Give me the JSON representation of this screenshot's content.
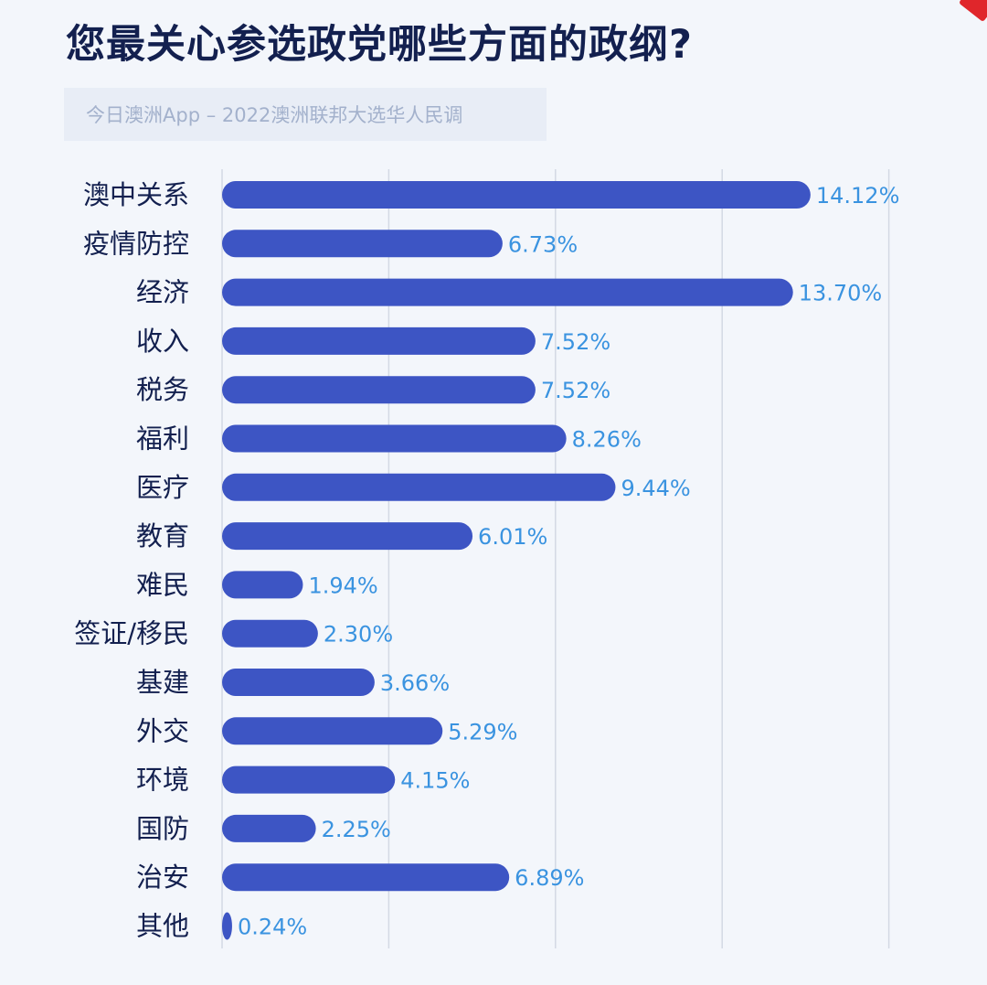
{
  "header": {
    "title": "您最关心参选政党哪些方面的政纲?",
    "source": "今日澳洲App – 2022澳洲联邦大选华人民调"
  },
  "colors": {
    "bar": "#3d55c4",
    "value_label": "#3a93e0",
    "grid": "#d3d9e4",
    "title": "#13204f"
  },
  "chart_data": {
    "type": "bar",
    "orientation": "horizontal",
    "title": "您最关心参选政党哪些方面的政纲?",
    "subtitle": "今日澳洲App – 2022澳洲联邦大选华人民调",
    "xlabel": "",
    "ylabel": "",
    "xlim": [
      0,
      16
    ],
    "grid": true,
    "categories": [
      "澳中关系",
      "疫情防控",
      "经济",
      "收入",
      "税务",
      "福利",
      "医疗",
      "教育",
      "难民",
      "签证/移民",
      "基建",
      "外交",
      "环境",
      "国防",
      "治安",
      "其他"
    ],
    "values": [
      14.12,
      6.73,
      13.7,
      7.52,
      7.52,
      8.26,
      9.44,
      6.01,
      1.94,
      2.3,
      3.66,
      5.29,
      4.15,
      2.25,
      6.89,
      0.24
    ],
    "value_labels": [
      "14.12%",
      "6.73%",
      "13.70%",
      "7.52%",
      "7.52%",
      "8.26%",
      "9.44%",
      "6.01%",
      "1.94%",
      "2.30%",
      "3.66%",
      "5.29%",
      "4.15%",
      "2.25%",
      "6.89%",
      "0.24%"
    ]
  }
}
